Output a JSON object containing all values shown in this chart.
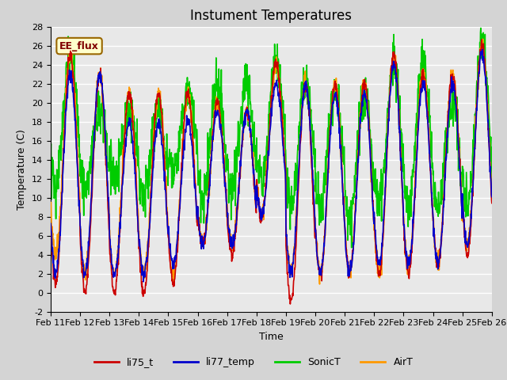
{
  "title": "Instument Temperatures",
  "xlabel": "Time",
  "ylabel": "Temperature (C)",
  "ylim": [
    -2,
    28
  ],
  "days": 15,
  "x_tick_labels": [
    "Feb 11",
    "Feb 12",
    "Feb 13",
    "Feb 14",
    "Feb 15",
    "Feb 16",
    "Feb 17",
    "Feb 18",
    "Feb 19",
    "Feb 20",
    "Feb 21",
    "Feb 22",
    "Feb 23",
    "Feb 24",
    "Feb 25",
    "Feb 26"
  ],
  "y_ticks": [
    -2,
    0,
    2,
    4,
    6,
    8,
    10,
    12,
    14,
    16,
    18,
    20,
    22,
    24,
    26,
    28
  ],
  "colors": {
    "li75_t": "#cc0000",
    "li77_temp": "#0000cc",
    "SonicT": "#00cc00",
    "AirT": "#ff9900"
  },
  "annotation_text": "EE_flux",
  "annotation_box_facecolor": "#ffffcc",
  "annotation_box_edgecolor": "#996600",
  "plot_bg": "#e8e8e8",
  "fig_bg": "#d4d4d4",
  "grid_color": "#ffffff",
  "title_fontsize": 12,
  "axis_label_fontsize": 9,
  "tick_fontsize": 8,
  "legend_fontsize": 9,
  "linewidth": 1.2,
  "day_peaks_li75": [
    25,
    23,
    21,
    21,
    21,
    20,
    19,
    24,
    22,
    22,
    22,
    25,
    23,
    23,
    26,
    10
  ],
  "day_mins_li75": [
    1,
    0,
    0,
    0,
    1,
    5,
    4,
    8,
    -1,
    2,
    2,
    2,
    2,
    3,
    4,
    10
  ],
  "day_peaks_li77": [
    23,
    23,
    18,
    18,
    18,
    19,
    19,
    22,
    22,
    21,
    21,
    24,
    22,
    22,
    25,
    10
  ],
  "day_mins_li77": [
    2,
    2,
    2,
    2,
    3,
    5,
    5,
    8,
    2,
    2,
    2,
    3,
    3,
    3,
    5,
    10
  ],
  "day_peaks_sonic": [
    25,
    19,
    19,
    19,
    21,
    22,
    22,
    24,
    22,
    21,
    21,
    24,
    24,
    20,
    26,
    16
  ],
  "day_mins_sonic": [
    11,
    11,
    12,
    10,
    13,
    10,
    11,
    12,
    9,
    9,
    8,
    9,
    9,
    9,
    9,
    16
  ],
  "day_peaks_air": [
    25,
    23,
    21,
    21,
    21,
    20,
    19,
    24,
    22,
    22,
    22,
    25,
    23,
    23,
    26,
    12
  ],
  "day_mins_air": [
    4,
    2,
    2,
    2,
    2,
    5,
    5,
    8,
    2,
    2,
    2,
    2,
    3,
    3,
    5,
    12
  ],
  "peak_hour": 14,
  "min_hour": 4
}
